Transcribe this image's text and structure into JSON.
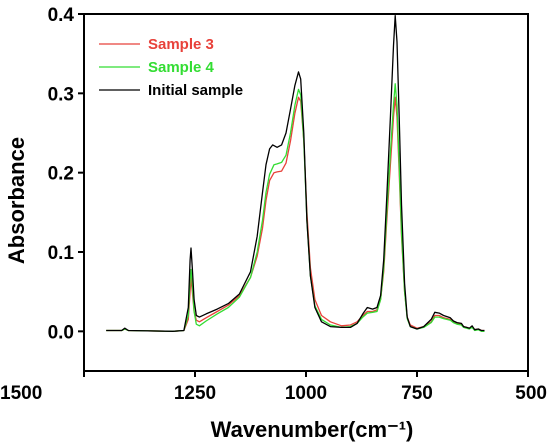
{
  "chart_data": {
    "type": "line",
    "xlabel": "Wavenumber(cm⁻¹)",
    "ylabel": "Absorbance",
    "xlim": [
      1500,
      500
    ],
    "ylim": [
      -0.05,
      0.4
    ],
    "x_reversed": true,
    "xticks": [
      "1500",
      "1250",
      "1000",
      "750",
      "500"
    ],
    "yticks": [
      "0.0",
      "0.1",
      "0.2",
      "0.3",
      "0.4"
    ],
    "grid": false,
    "legend_position": "top-left",
    "series": [
      {
        "name": "Sample 3",
        "color": "#e8413a",
        "points": [
          [
            1450,
            0.001
          ],
          [
            1415,
            0.001
          ],
          [
            1408,
            0.003
          ],
          [
            1400,
            0.001
          ],
          [
            1300,
            0.0
          ],
          [
            1275,
            0.001
          ],
          [
            1265,
            0.015
          ],
          [
            1261,
            0.05
          ],
          [
            1259,
            0.068
          ],
          [
            1256,
            0.05
          ],
          [
            1252,
            0.025
          ],
          [
            1247,
            0.014
          ],
          [
            1240,
            0.012
          ],
          [
            1225,
            0.017
          ],
          [
            1200,
            0.025
          ],
          [
            1175,
            0.033
          ],
          [
            1150,
            0.045
          ],
          [
            1125,
            0.068
          ],
          [
            1110,
            0.095
          ],
          [
            1098,
            0.13
          ],
          [
            1090,
            0.165
          ],
          [
            1082,
            0.19
          ],
          [
            1072,
            0.2
          ],
          [
            1065,
            0.201
          ],
          [
            1055,
            0.202
          ],
          [
            1045,
            0.212
          ],
          [
            1035,
            0.24
          ],
          [
            1025,
            0.275
          ],
          [
            1017,
            0.295
          ],
          [
            1012,
            0.29
          ],
          [
            1005,
            0.24
          ],
          [
            998,
            0.15
          ],
          [
            990,
            0.08
          ],
          [
            980,
            0.04
          ],
          [
            965,
            0.02
          ],
          [
            945,
            0.012
          ],
          [
            920,
            0.007
          ],
          [
            900,
            0.008
          ],
          [
            885,
            0.012
          ],
          [
            872,
            0.02
          ],
          [
            862,
            0.025
          ],
          [
            850,
            0.025
          ],
          [
            840,
            0.027
          ],
          [
            832,
            0.04
          ],
          [
            825,
            0.075
          ],
          [
            818,
            0.14
          ],
          [
            810,
            0.21
          ],
          [
            803,
            0.27
          ],
          [
            799,
            0.295
          ],
          [
            795,
            0.27
          ],
          [
            790,
            0.2
          ],
          [
            785,
            0.12
          ],
          [
            778,
            0.05
          ],
          [
            772,
            0.018
          ],
          [
            765,
            0.008
          ],
          [
            750,
            0.004
          ],
          [
            735,
            0.006
          ],
          [
            718,
            0.012
          ],
          [
            710,
            0.02
          ],
          [
            700,
            0.02
          ],
          [
            690,
            0.017
          ],
          [
            675,
            0.015
          ],
          [
            668,
            0.012
          ],
          [
            660,
            0.01
          ],
          [
            650,
            0.009
          ],
          [
            645,
            0.006
          ],
          [
            638,
            0.005
          ],
          [
            632,
            0.004
          ],
          [
            626,
            0.006
          ],
          [
            620,
            0.002
          ],
          [
            612,
            0.003
          ],
          [
            605,
            0.001
          ],
          [
            598,
            0.001
          ]
        ]
      },
      {
        "name": "Sample 4",
        "color": "#33dd33",
        "points": [
          [
            1450,
            0.001
          ],
          [
            1415,
            0.001
          ],
          [
            1408,
            0.003
          ],
          [
            1400,
            0.001
          ],
          [
            1300,
            0.0
          ],
          [
            1275,
            0.001
          ],
          [
            1265,
            0.02
          ],
          [
            1261,
            0.065
          ],
          [
            1259,
            0.078
          ],
          [
            1256,
            0.06
          ],
          [
            1252,
            0.025
          ],
          [
            1247,
            0.009
          ],
          [
            1240,
            0.007
          ],
          [
            1225,
            0.013
          ],
          [
            1200,
            0.022
          ],
          [
            1175,
            0.03
          ],
          [
            1150,
            0.043
          ],
          [
            1125,
            0.068
          ],
          [
            1110,
            0.1
          ],
          [
            1098,
            0.14
          ],
          [
            1090,
            0.175
          ],
          [
            1082,
            0.198
          ],
          [
            1072,
            0.21
          ],
          [
            1065,
            0.211
          ],
          [
            1055,
            0.213
          ],
          [
            1045,
            0.222
          ],
          [
            1035,
            0.25
          ],
          [
            1025,
            0.285
          ],
          [
            1017,
            0.305
          ],
          [
            1012,
            0.298
          ],
          [
            1005,
            0.24
          ],
          [
            998,
            0.14
          ],
          [
            990,
            0.07
          ],
          [
            980,
            0.032
          ],
          [
            965,
            0.015
          ],
          [
            945,
            0.008
          ],
          [
            920,
            0.005
          ],
          [
            900,
            0.006
          ],
          [
            885,
            0.01
          ],
          [
            872,
            0.018
          ],
          [
            862,
            0.023
          ],
          [
            850,
            0.024
          ],
          [
            840,
            0.025
          ],
          [
            832,
            0.04
          ],
          [
            825,
            0.08
          ],
          [
            818,
            0.15
          ],
          [
            810,
            0.225
          ],
          [
            803,
            0.285
          ],
          [
            799,
            0.312
          ],
          [
            795,
            0.285
          ],
          [
            790,
            0.21
          ],
          [
            785,
            0.125
          ],
          [
            778,
            0.05
          ],
          [
            772,
            0.016
          ],
          [
            765,
            0.006
          ],
          [
            750,
            0.003
          ],
          [
            735,
            0.005
          ],
          [
            718,
            0.011
          ],
          [
            710,
            0.018
          ],
          [
            700,
            0.018
          ],
          [
            690,
            0.016
          ],
          [
            675,
            0.014
          ],
          [
            668,
            0.011
          ],
          [
            660,
            0.009
          ],
          [
            650,
            0.008
          ],
          [
            645,
            0.005
          ],
          [
            638,
            0.004
          ],
          [
            632,
            0.003
          ],
          [
            626,
            0.005
          ],
          [
            620,
            0.001
          ],
          [
            612,
            0.002
          ],
          [
            605,
            0.0
          ],
          [
            598,
            0.0
          ]
        ]
      },
      {
        "name": "Initial sample",
        "color": "#000000",
        "points": [
          [
            1450,
            0.001
          ],
          [
            1415,
            0.001
          ],
          [
            1408,
            0.004
          ],
          [
            1400,
            0.001
          ],
          [
            1300,
            0.0
          ],
          [
            1275,
            0.001
          ],
          [
            1265,
            0.03
          ],
          [
            1261,
            0.09
          ],
          [
            1259,
            0.105
          ],
          [
            1256,
            0.08
          ],
          [
            1252,
            0.04
          ],
          [
            1247,
            0.02
          ],
          [
            1240,
            0.018
          ],
          [
            1225,
            0.022
          ],
          [
            1200,
            0.028
          ],
          [
            1175,
            0.035
          ],
          [
            1150,
            0.047
          ],
          [
            1125,
            0.075
          ],
          [
            1110,
            0.12
          ],
          [
            1098,
            0.175
          ],
          [
            1090,
            0.21
          ],
          [
            1082,
            0.23
          ],
          [
            1075,
            0.235
          ],
          [
            1065,
            0.232
          ],
          [
            1055,
            0.235
          ],
          [
            1045,
            0.25
          ],
          [
            1035,
            0.28
          ],
          [
            1025,
            0.31
          ],
          [
            1017,
            0.327
          ],
          [
            1012,
            0.318
          ],
          [
            1005,
            0.25
          ],
          [
            998,
            0.14
          ],
          [
            990,
            0.07
          ],
          [
            980,
            0.03
          ],
          [
            965,
            0.012
          ],
          [
            945,
            0.006
          ],
          [
            920,
            0.005
          ],
          [
            900,
            0.005
          ],
          [
            885,
            0.01
          ],
          [
            872,
            0.022
          ],
          [
            862,
            0.03
          ],
          [
            850,
            0.028
          ],
          [
            840,
            0.03
          ],
          [
            832,
            0.045
          ],
          [
            825,
            0.09
          ],
          [
            818,
            0.17
          ],
          [
            810,
            0.27
          ],
          [
            803,
            0.36
          ],
          [
            799,
            0.398
          ],
          [
            795,
            0.365
          ],
          [
            790,
            0.27
          ],
          [
            785,
            0.16
          ],
          [
            778,
            0.06
          ],
          [
            772,
            0.018
          ],
          [
            765,
            0.006
          ],
          [
            750,
            0.003
          ],
          [
            735,
            0.006
          ],
          [
            718,
            0.015
          ],
          [
            710,
            0.024
          ],
          [
            700,
            0.023
          ],
          [
            690,
            0.02
          ],
          [
            675,
            0.017
          ],
          [
            668,
            0.013
          ],
          [
            660,
            0.011
          ],
          [
            650,
            0.01
          ],
          [
            645,
            0.006
          ],
          [
            638,
            0.005
          ],
          [
            632,
            0.004
          ],
          [
            626,
            0.007
          ],
          [
            620,
            0.002
          ],
          [
            612,
            0.003
          ],
          [
            605,
            0.001
          ],
          [
            598,
            0.001
          ]
        ]
      }
    ]
  }
}
